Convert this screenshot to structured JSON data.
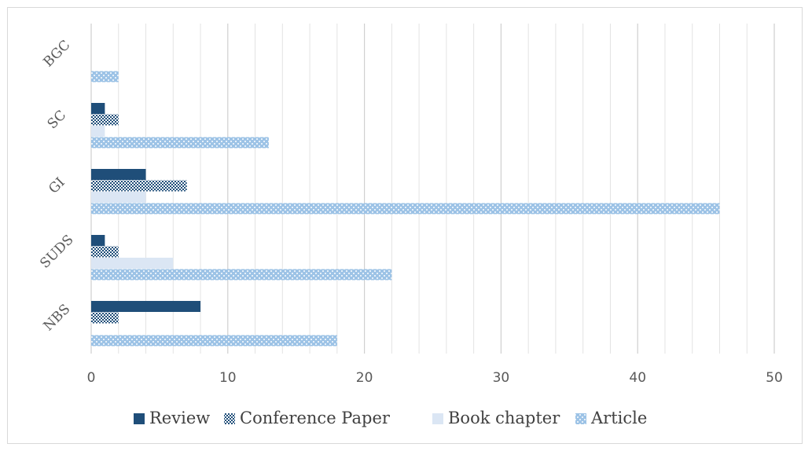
{
  "chart_data": {
    "type": "bar",
    "orientation": "horizontal",
    "categories": [
      "NBS",
      "SUDS",
      "GI",
      "SC",
      "BGC"
    ],
    "series": [
      {
        "name": "Review",
        "values": [
          8,
          1,
          4,
          1,
          0
        ]
      },
      {
        "name": "Conference Paper",
        "values": [
          2,
          2,
          7,
          2,
          0
        ]
      },
      {
        "name": "Book chapter",
        "values": [
          0,
          6,
          4,
          1,
          0
        ]
      },
      {
        "name": "Article",
        "values": [
          18,
          22,
          46,
          13,
          2
        ]
      }
    ],
    "xlim": [
      0,
      50
    ],
    "xticks": [
      0,
      10,
      20,
      30,
      40,
      50
    ],
    "grid": "vertical",
    "legend_position": "bottom"
  },
  "colors": {
    "Review": "#1f4e79",
    "Conference Paper": "#2e5c8a",
    "Book chapter": "#dbe6f4",
    "Article": "#9dc3e6",
    "grid": "#d9d9d9"
  }
}
